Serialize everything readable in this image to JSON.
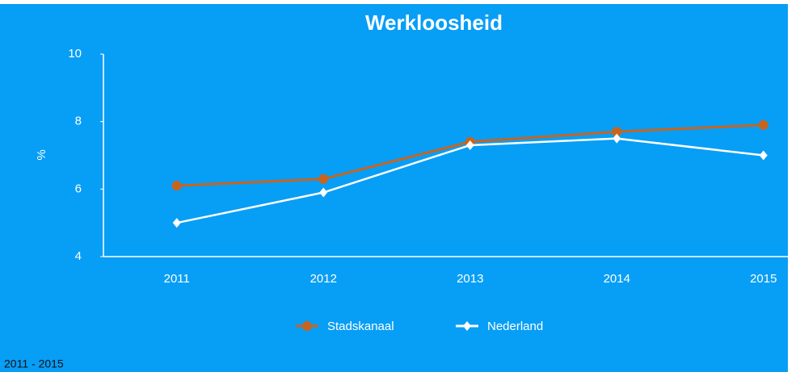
{
  "chart_data": {
    "type": "line",
    "title": "Werkloosheid",
    "y_label": "%",
    "categories": [
      "2011",
      "2012",
      "2013",
      "2014",
      "2015"
    ],
    "series": [
      {
        "name": "Stadskanaal",
        "color": "#c8641e",
        "marker": "circle",
        "values": [
          6.1,
          6.3,
          7.4,
          7.7,
          7.9
        ]
      },
      {
        "name": "Nederland",
        "color": "#ffffff",
        "marker": "diamond",
        "values": [
          5.0,
          5.9,
          7.3,
          7.5,
          7.0
        ]
      }
    ],
    "ylim": [
      4,
      10
    ],
    "yticks": [
      4,
      6,
      8,
      10
    ],
    "legend": "bottom",
    "footnote": "2011 - 2015"
  }
}
